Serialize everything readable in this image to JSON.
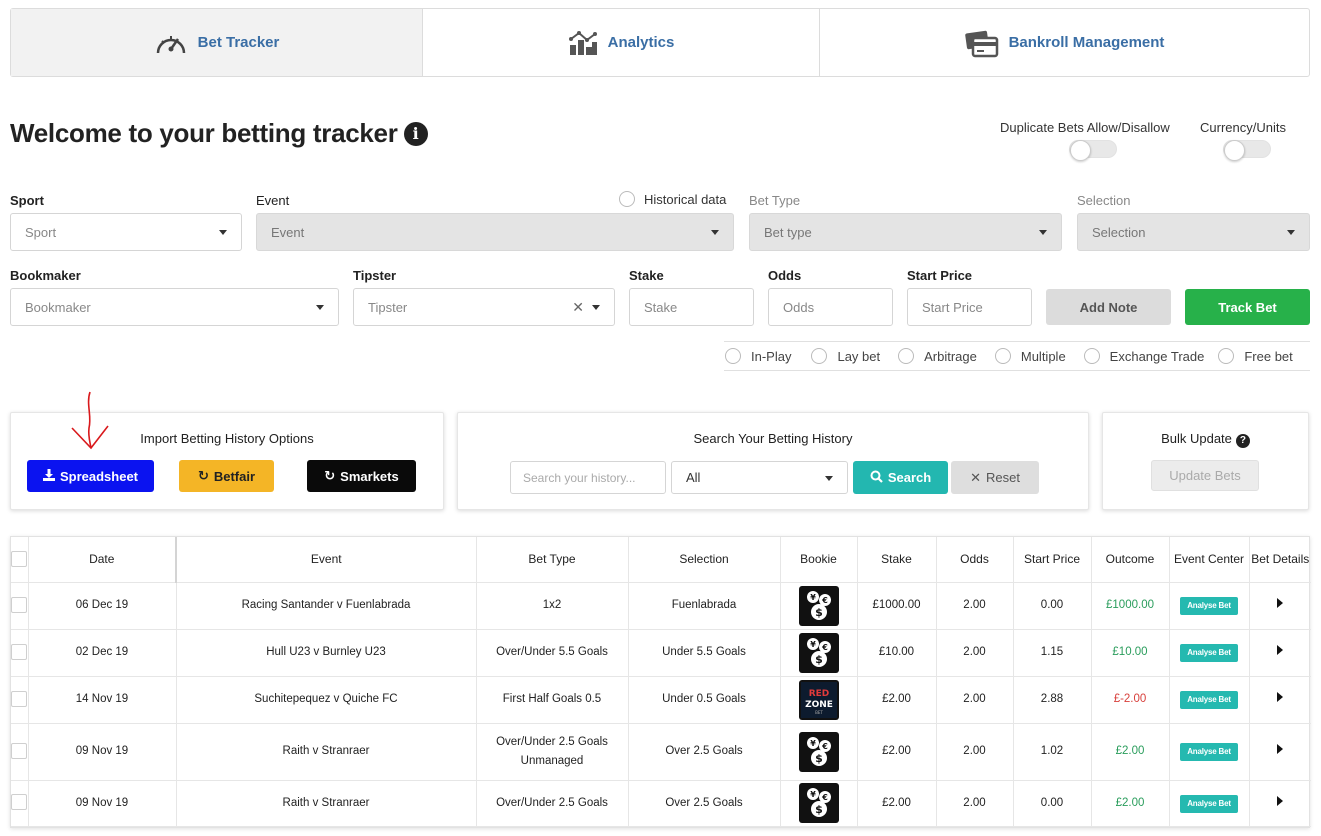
{
  "tabs": [
    {
      "label": "Bet Tracker",
      "icon": "speedometer-icon",
      "active": true
    },
    {
      "label": "Analytics",
      "icon": "bar-chart-icon",
      "active": false
    },
    {
      "label": "Bankroll Management",
      "icon": "wallet-card-icon",
      "active": false
    }
  ],
  "title": "Welcome to your betting tracker",
  "toggles": {
    "duplicate": "Duplicate Bets Allow/Disallow",
    "currency": "Currency/Units"
  },
  "form": {
    "sport": {
      "label": "Sport",
      "placeholder": "Sport"
    },
    "event": {
      "label": "Event",
      "placeholder": "Event"
    },
    "historical": "Historical data",
    "bet_type": {
      "label": "Bet Type",
      "placeholder": "Bet type"
    },
    "selection": {
      "label": "Selection",
      "placeholder": "Selection"
    },
    "bookmaker": {
      "label": "Bookmaker",
      "placeholder": "Bookmaker"
    },
    "tipster": {
      "label": "Tipster",
      "placeholder": "Tipster"
    },
    "stake": {
      "label": "Stake",
      "placeholder": "Stake"
    },
    "odds": {
      "label": "Odds",
      "placeholder": "Odds"
    },
    "start_price": {
      "label": "Start Price",
      "placeholder": "Start Price"
    },
    "add_note": "Add Note",
    "track_bet": "Track Bet",
    "options": [
      "In-Play",
      "Lay bet",
      "Arbitrage",
      "Multiple",
      "Exchange Trade",
      "Free bet"
    ]
  },
  "import_panel": {
    "title": "Import Betting History Options",
    "spreadsheet": "Spreadsheet",
    "betfair": "Betfair",
    "smarkets": "Smarkets"
  },
  "search_panel": {
    "title": "Search Your Betting History",
    "placeholder": "Search your history...",
    "filter_value": "All",
    "search": "Search",
    "reset": "Reset"
  },
  "bulk_panel": {
    "title": "Bulk Update",
    "button": "Update Bets"
  },
  "table": {
    "headers": [
      "Date",
      "Event",
      "Bet Type",
      "Selection",
      "Bookie",
      "Stake",
      "Odds",
      "Start Price",
      "Outcome",
      "Event Center",
      "Bet Details"
    ],
    "analyse_label": "Analyse Bet",
    "rows": [
      {
        "date": "06 Dec 19",
        "event": "Racing Santander v Fuenlabrada",
        "bet_type": "1x2",
        "bet_type2": "",
        "selection": "Fuenlabrada",
        "bookie": "coins-logo",
        "stake": "£1000.00",
        "odds": "2.00",
        "start_price": "0.00",
        "outcome": "£1000.00",
        "outcome_status": "win"
      },
      {
        "date": "02 Dec 19",
        "event": "Hull U23 v Burnley U23",
        "bet_type": "Over/Under 5.5 Goals",
        "bet_type2": "",
        "selection": "Under 5.5 Goals",
        "bookie": "coins-logo",
        "stake": "£10.00",
        "odds": "2.00",
        "start_price": "1.15",
        "outcome": "£10.00",
        "outcome_status": "win"
      },
      {
        "date": "14 Nov 19",
        "event": "Suchitepequez v Quiche FC",
        "bet_type": "First Half Goals 0.5",
        "bet_type2": "",
        "selection": "Under 0.5 Goals",
        "bookie": "redzone-logo",
        "stake": "£2.00",
        "odds": "2.00",
        "start_price": "2.88",
        "outcome": "£-2.00",
        "outcome_status": "loss"
      },
      {
        "date": "09 Nov 19",
        "event": "Raith v Stranraer",
        "bet_type": "Over/Under 2.5 Goals",
        "bet_type2": "Unmanaged",
        "selection": "Over 2.5 Goals",
        "bookie": "coins-logo",
        "stake": "£2.00",
        "odds": "2.00",
        "start_price": "1.02",
        "outcome": "£2.00",
        "outcome_status": "win"
      },
      {
        "date": "09 Nov 19",
        "event": "Raith v Stranraer",
        "bet_type": "Over/Under 2.5 Goals",
        "bet_type2": "",
        "selection": "Over 2.5 Goals",
        "bookie": "coins-logo",
        "stake": "£2.00",
        "odds": "2.00",
        "start_price": "0.00",
        "outcome": "£2.00",
        "outcome_status": "win"
      }
    ]
  },
  "colors": {
    "accent_blue": "#3a6ea5",
    "track_green": "#27b14a",
    "spreadsheet_blue": "#0b13f0",
    "betfair_orange": "#f4b526",
    "teal": "#23b7b0",
    "win": "#2a9d5c",
    "loss": "#d8403c"
  }
}
